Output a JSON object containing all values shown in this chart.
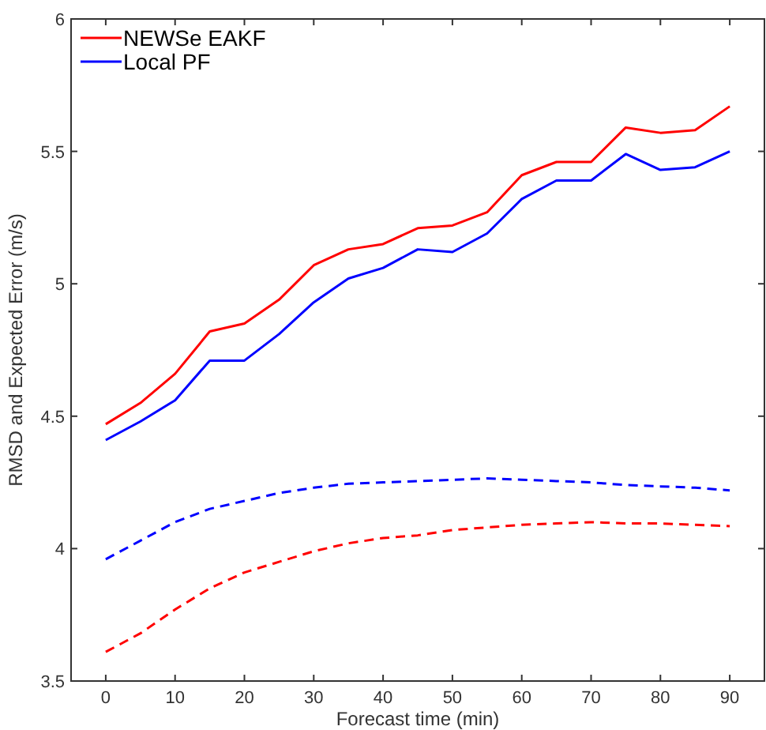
{
  "chart_data": {
    "type": "line",
    "xlabel": "Forecast time (min)",
    "ylabel": "RMSD and Expected Error (m/s)",
    "x": [
      0,
      5,
      10,
      15,
      20,
      25,
      30,
      35,
      40,
      45,
      50,
      55,
      60,
      65,
      70,
      75,
      80,
      85,
      90
    ],
    "xlim": [
      -5,
      95
    ],
    "xticks": [
      0,
      10,
      20,
      30,
      40,
      50,
      60,
      70,
      80,
      90
    ],
    "ylim": [
      3.5,
      6
    ],
    "yticks": [
      3.5,
      4,
      4.5,
      5,
      5.5,
      6
    ],
    "grid": false,
    "legend": "top left",
    "series": [
      {
        "name": "NEWSe EAKF",
        "color": "#ff0000",
        "line_style": "solid",
        "values": [
          4.47,
          4.55,
          4.66,
          4.82,
          4.85,
          4.94,
          5.07,
          5.13,
          5.15,
          5.21,
          5.22,
          5.27,
          5.41,
          5.46,
          5.46,
          5.59,
          5.57,
          5.58,
          5.67
        ]
      },
      {
        "name": "Local PF",
        "color": "#0000ff",
        "line_style": "solid",
        "values": [
          4.41,
          4.48,
          4.56,
          4.71,
          4.71,
          4.81,
          4.93,
          5.02,
          5.06,
          5.13,
          5.12,
          5.19,
          5.32,
          5.39,
          5.39,
          5.49,
          5.43,
          5.44,
          5.5
        ]
      },
      {
        "color": "#0000ff",
        "line_style": "dashed",
        "values": [
          3.96,
          4.03,
          4.1,
          4.15,
          4.18,
          4.21,
          4.23,
          4.245,
          4.25,
          4.255,
          4.26,
          4.265,
          4.26,
          4.255,
          4.25,
          4.24,
          4.235,
          4.23,
          4.22
        ]
      },
      {
        "color": "#ff0000",
        "line_style": "dashed",
        "values": [
          3.61,
          3.68,
          3.77,
          3.85,
          3.91,
          3.95,
          3.99,
          4.02,
          4.04,
          4.05,
          4.07,
          4.08,
          4.09,
          4.095,
          4.1,
          4.095,
          4.095,
          4.09,
          4.085
        ]
      }
    ]
  }
}
